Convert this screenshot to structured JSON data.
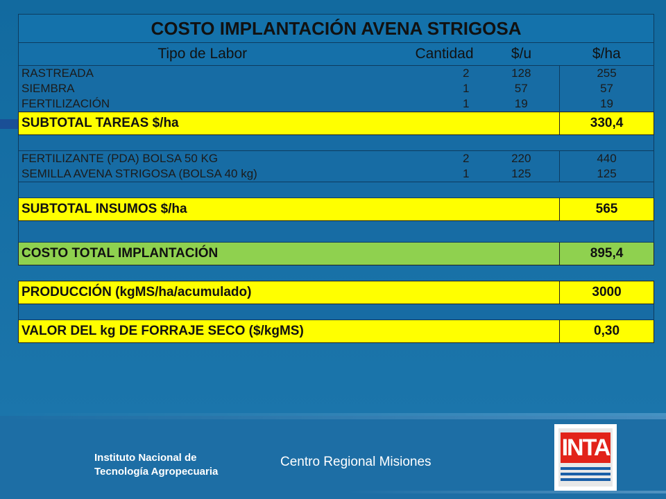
{
  "title": "COSTO IMPLANTACIÓN AVENA STRIGOSA",
  "columns": [
    "Tipo de Labor",
    "Cantidad",
    "$/u",
    "$/ha"
  ],
  "labores": [
    {
      "tipo": "RASTREADA",
      "cantidad": "2",
      "unit": "128",
      "ha": "255"
    },
    {
      "tipo": "SIEMBRA",
      "cantidad": "1",
      "unit": "57",
      "ha": "57"
    },
    {
      "tipo": "FERTILIZACIÓN",
      "cantidad": "1",
      "unit": "19",
      "ha": "19"
    }
  ],
  "subtotal_tareas": {
    "label": "SUBTOTAL TAREAS $/ha",
    "value": "330,4"
  },
  "insumos": [
    {
      "tipo": "FERTILIZANTE (PDA) BOLSA 50 KG",
      "cantidad": "2",
      "unit": "220",
      "ha": "440"
    },
    {
      "tipo": "SEMILLA AVENA STRIGOSA (BOLSA 40 kg)",
      "cantidad": "1",
      "unit": "125",
      "ha": "125"
    }
  ],
  "subtotal_insumos": {
    "label": "SUBTOTAL INSUMOS $/ha",
    "value": "565"
  },
  "costo_total": {
    "label": "COSTO TOTAL IMPLANTACIÓN",
    "value": "895,4"
  },
  "produccion": {
    "label": "PRODUCCIÓN (kgMS/ha/acumulado)",
    "value": "3000"
  },
  "valor_forraje": {
    "label": "VALOR DEL kg DE FORRAJE SECO ($/kgMS)",
    "value": "0,30"
  },
  "footer": {
    "institute_line1": "Instituto Nacional de",
    "institute_line2": "Tecnología Agropecuaria",
    "center": "Centro Regional Misiones",
    "logo_text": "INTA"
  },
  "colors": {
    "background": "#1a6ea3",
    "highlight_yellow": "#ffff00",
    "highlight_green": "#8fd14f",
    "logo_red": "#e2231a"
  }
}
